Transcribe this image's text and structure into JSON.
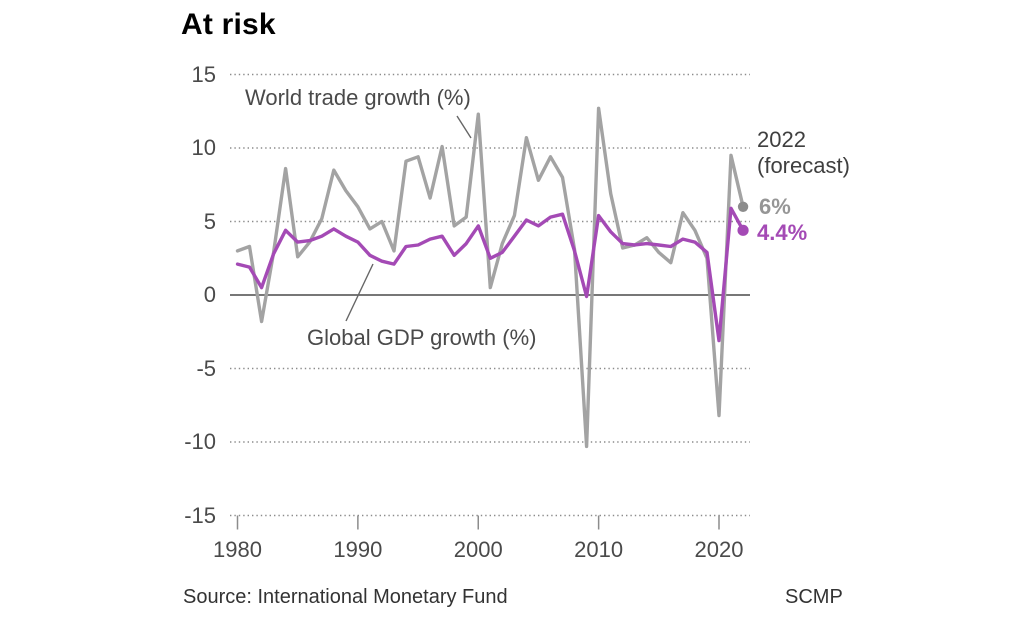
{
  "title": "At risk",
  "annotations": {
    "trade_series_label": "World trade growth (%)",
    "gdp_series_label": "Global GDP growth (%)",
    "forecast_line1": "2022",
    "forecast_line2": "(forecast)",
    "trade_end_value": "6%",
    "gdp_end_value": "4.4%"
  },
  "footer": {
    "source": "Source: International Monetary Fund",
    "credit": "SCMP"
  },
  "colors": {
    "title_text": "#000000",
    "annotation_text": "#3f3f3f",
    "axis_text": "#4a4a4a",
    "grid_line": "#8c8c8c",
    "zero_line": "#4a4a4a",
    "tick_mark": "#8c8c8c",
    "callout_line": "#666666",
    "trade_line": "#a3a3a3",
    "trade_dot": "#8c8c8c",
    "trade_value_text": "#969696",
    "gdp_line": "#a44ab5",
    "gdp_dot": "#a44ab5",
    "gdp_value_text": "#a44ab5",
    "footer_text": "#333333"
  },
  "chart_data": {
    "type": "line",
    "title": "At risk",
    "xlabel": "",
    "ylabel": "",
    "ylim": [
      -15,
      15
    ],
    "y_ticks": [
      15,
      10,
      5,
      0,
      -5,
      -10,
      -15
    ],
    "x_ticks": [
      1980,
      1990,
      2000,
      2010,
      2020
    ],
    "grid": "horizontal dotted, solid zero line",
    "legend_position": "inline annotations",
    "x": [
      1980,
      1981,
      1982,
      1983,
      1984,
      1985,
      1986,
      1987,
      1988,
      1989,
      1990,
      1991,
      1992,
      1993,
      1994,
      1995,
      1996,
      1997,
      1998,
      1999,
      2000,
      2001,
      2002,
      2003,
      2004,
      2005,
      2006,
      2007,
      2008,
      2009,
      2010,
      2011,
      2012,
      2013,
      2014,
      2015,
      2016,
      2017,
      2018,
      2019,
      2020,
      2021,
      2022
    ],
    "series": [
      {
        "name": "World trade growth (%)",
        "color": "#a3a3a3",
        "end_label": "6%",
        "values": [
          3.0,
          3.3,
          -1.8,
          2.9,
          8.6,
          2.6,
          3.6,
          5.2,
          8.5,
          7.1,
          6.0,
          4.5,
          5.0,
          3.0,
          9.1,
          9.4,
          6.6,
          10.1,
          4.7,
          5.3,
          12.3,
          0.5,
          3.5,
          5.4,
          10.7,
          7.8,
          9.4,
          8.0,
          3.1,
          -10.3,
          12.7,
          6.9,
          3.2,
          3.4,
          3.9,
          2.9,
          2.2,
          5.6,
          4.4,
          2.5,
          -8.2,
          9.5,
          6.0
        ]
      },
      {
        "name": "Global GDP growth (%)",
        "color": "#a44ab5",
        "end_label": "4.4%",
        "values": [
          2.1,
          1.9,
          0.5,
          2.8,
          4.4,
          3.6,
          3.7,
          4.0,
          4.5,
          4.0,
          3.6,
          2.7,
          2.3,
          2.1,
          3.3,
          3.4,
          3.8,
          4.0,
          2.7,
          3.5,
          4.7,
          2.5,
          2.9,
          4.0,
          5.1,
          4.7,
          5.3,
          5.5,
          3.0,
          -0.1,
          5.4,
          4.3,
          3.5,
          3.4,
          3.5,
          3.4,
          3.3,
          3.8,
          3.6,
          2.9,
          -3.1,
          5.9,
          4.4
        ]
      }
    ]
  }
}
